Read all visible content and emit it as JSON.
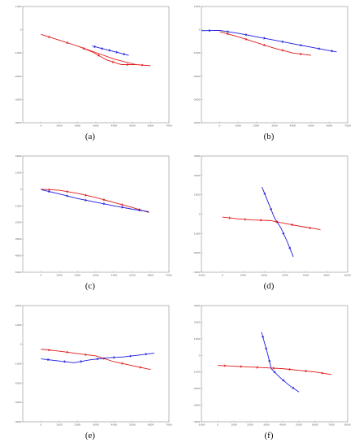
{
  "colors": {
    "red": "#e01818",
    "blue": "#1a1ae0"
  },
  "panels": [
    {
      "label": "(a)",
      "name": "panel-a"
    },
    {
      "label": "(b)",
      "name": "panel-b"
    },
    {
      "label": "(c)",
      "name": "panel-c"
    },
    {
      "label": "(d)",
      "name": "panel-d"
    },
    {
      "label": "(e)",
      "name": "panel-e"
    },
    {
      "label": "(f)",
      "name": "panel-f"
    }
  ],
  "chart_data": [
    {
      "type": "line",
      "title": "",
      "xlabel": "",
      "ylabel": "",
      "xlim": [
        -1000,
        7000
      ],
      "ylim": [
        -4000,
        1000
      ],
      "xticks": [
        0,
        1000,
        2000,
        3000,
        4000,
        5000,
        6000,
        7000
      ],
      "yticks": [
        -4000,
        -3000,
        -2000,
        -1000,
        0,
        1000
      ],
      "series": [
        {
          "color": "red",
          "markers": true,
          "x": [
            0,
            1000,
            2000,
            2800,
            3600,
            4400,
            5200,
            6000
          ],
          "y": [
            -200,
            -450,
            -700,
            -950,
            -1300,
            -1500,
            -1500,
            -1550
          ]
        },
        {
          "color": "red",
          "markers": false,
          "x": [
            2000,
            3000,
            4000,
            5200
          ],
          "y": [
            -700,
            -980,
            -1260,
            -1500
          ]
        },
        {
          "color": "blue",
          "markers": true,
          "x": [
            2800,
            3200,
            3600,
            4000,
            4400,
            4800
          ],
          "y": [
            -700,
            -780,
            -860,
            -940,
            -1020,
            -1100
          ]
        }
      ]
    },
    {
      "type": "line",
      "title": "",
      "xlabel": "",
      "ylabel": "",
      "xlim": [
        -1000,
        7000
      ],
      "ylim": [
        -4000,
        1000
      ],
      "xticks": [
        0,
        1000,
        2000,
        3000,
        4000,
        5000,
        6000,
        7000
      ],
      "yticks": [
        -4000,
        -3000,
        -2000,
        -1000,
        0,
        1000
      ],
      "series": [
        {
          "color": "blue",
          "markers": true,
          "x": [
            -1000,
            0,
            1000,
            2000,
            3000,
            4000,
            5000,
            6000,
            6400
          ],
          "y": [
            -40,
            -30,
            -150,
            -300,
            -450,
            -600,
            -750,
            -900,
            -950
          ]
        },
        {
          "color": "red",
          "markers": true,
          "x": [
            0,
            1000,
            2000,
            3000,
            4000,
            5000
          ],
          "y": [
            -80,
            -300,
            -550,
            -800,
            -1000,
            -1100
          ]
        }
      ]
    },
    {
      "type": "line",
      "title": "",
      "xlabel": "",
      "ylabel": "",
      "xlim": [
        -1000,
        7000
      ],
      "ylim": [
        -5000,
        2000
      ],
      "xticks": [
        0,
        1000,
        2000,
        3000,
        4000,
        5000,
        6000,
        7000
      ],
      "yticks": [
        -5000,
        -4000,
        -3000,
        -2000,
        -1000,
        0,
        1000,
        2000
      ],
      "series": [
        {
          "color": "red",
          "markers": true,
          "x": [
            0,
            1000,
            2000,
            3000,
            4000,
            5000,
            5900
          ],
          "y": [
            0,
            -60,
            -250,
            -500,
            -800,
            -1100,
            -1400
          ]
        },
        {
          "color": "blue",
          "markers": true,
          "x": [
            0,
            1000,
            2000,
            3000,
            4000,
            5000,
            5900
          ],
          "y": [
            -20,
            -280,
            -560,
            -780,
            -1000,
            -1200,
            -1350
          ]
        }
      ]
    },
    {
      "type": "line",
      "title": "",
      "xlabel": "",
      "ylabel": "",
      "xlim": [
        -1000,
        6000
      ],
      "ylim": [
        -3000,
        3000
      ],
      "xticks": [
        -1000,
        0,
        1000,
        2000,
        3000,
        4000,
        5000,
        6000
      ],
      "yticks": [
        -3000,
        -2000,
        -1000,
        0,
        1000,
        2000,
        3000
      ],
      "series": [
        {
          "color": "blue",
          "markers": true,
          "x": [
            1900,
            2200,
            2500,
            2800,
            3100,
            3400
          ],
          "y": [
            1400,
            600,
            -200,
            -700,
            -1400,
            -2200
          ]
        },
        {
          "color": "red",
          "markers": true,
          "x": [
            0,
            800,
            1500,
            2300,
            3000,
            3800,
            4700
          ],
          "y": [
            -150,
            -250,
            -300,
            -330,
            -480,
            -640,
            -800
          ]
        }
      ]
    },
    {
      "type": "line",
      "title": "",
      "xlabel": "",
      "ylabel": "",
      "xlim": [
        -1000,
        7000
      ],
      "ylim": [
        -4000,
        2000
      ],
      "xticks": [
        0,
        1000,
        2000,
        3000,
        4000,
        5000,
        6000,
        7000
      ],
      "yticks": [
        -4000,
        -3000,
        -2000,
        -1000,
        0,
        1000,
        2000
      ],
      "series": [
        {
          "color": "red",
          "markers": true,
          "x": [
            0,
            1000,
            2000,
            3000,
            4000,
            5000,
            6000
          ],
          "y": [
            -250,
            -350,
            -480,
            -600,
            -900,
            -1100,
            -1300
          ]
        },
        {
          "color": "blue",
          "markers": true,
          "x": [
            0,
            900,
            1800,
            2700,
            3600,
            4500,
            5400,
            6200
          ],
          "y": [
            -750,
            -850,
            -950,
            -800,
            -700,
            -650,
            -550,
            -450
          ]
        }
      ]
    },
    {
      "type": "line",
      "title": "",
      "xlabel": "",
      "ylabel": "",
      "xlim": [
        -1000,
        8000
      ],
      "ylim": [
        -4000,
        3000
      ],
      "xticks": [
        -1000,
        0,
        1000,
        2000,
        3000,
        4000,
        5000,
        6000,
        7000,
        8000
      ],
      "yticks": [
        -4000,
        -3000,
        -2000,
        -1000,
        0,
        1000,
        2000,
        3000
      ],
      "series": [
        {
          "color": "blue",
          "markers": true,
          "x": [
            2700,
            2900,
            3100,
            3300,
            3800,
            4400,
            5000
          ],
          "y": [
            1400,
            700,
            0,
            -800,
            -1300,
            -1800,
            -2200
          ]
        },
        {
          "color": "red",
          "markers": true,
          "x": [
            0,
            1000,
            2000,
            3000,
            4000,
            5000,
            6000,
            7000
          ],
          "y": [
            -600,
            -650,
            -700,
            -750,
            -800,
            -900,
            -1000,
            -1150
          ]
        }
      ]
    }
  ]
}
